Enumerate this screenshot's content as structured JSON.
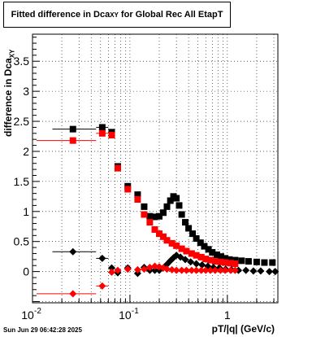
{
  "header": {
    "title_main": "Fitted difference in Dca",
    "title_sub": "XY",
    "title_tail": " for Global Rec All EtapT"
  },
  "footer": {
    "datestamp": "Sun Jun 29 06:42:28 2025"
  },
  "chart_data": {
    "type": "scatter",
    "title": "Fitted difference in Dca_XY for Global Rec All EtapT",
    "xlabel": "pT/|q| (GeV/c)",
    "ylabel": "difference in Dca_XY",
    "xscale": "log",
    "xlim": [
      0.01,
      3.3
    ],
    "ylim": [
      -0.52,
      3.95
    ],
    "grid": true,
    "x_tick_labels": [
      "10",
      "10",
      "1"
    ],
    "x_tick_exponents": [
      "-2",
      "-1",
      ""
    ],
    "y_ticks": [
      "0",
      "0.5",
      "1",
      "1.5",
      "2",
      "2.5",
      "3",
      "3.5"
    ],
    "series": [
      {
        "color": "#000000",
        "marker": "square",
        "points": [
          {
            "x": 0.026,
            "y": 2.37,
            "xerr_low": 0.016,
            "xerr_high": 0.045
          },
          {
            "x": 0.052,
            "y": 2.4,
            "xerr_low": 0.045,
            "xerr_high": 0.06
          },
          {
            "x": 0.065,
            "y": 2.32
          },
          {
            "x": 0.075,
            "y": 1.75
          },
          {
            "x": 0.095,
            "y": 1.42
          },
          {
            "x": 0.12,
            "y": 1.28
          },
          {
            "x": 0.14,
            "y": 1.08
          },
          {
            "x": 0.16,
            "y": 0.92
          },
          {
            "x": 0.18,
            "y": 0.91
          },
          {
            "x": 0.2,
            "y": 0.92
          },
          {
            "x": 0.22,
            "y": 0.98
          },
          {
            "x": 0.24,
            "y": 1.08
          },
          {
            "x": 0.26,
            "y": 1.18
          },
          {
            "x": 0.28,
            "y": 1.25
          },
          {
            "x": 0.3,
            "y": 1.22
          },
          {
            "x": 0.32,
            "y": 1.1
          },
          {
            "x": 0.34,
            "y": 0.95
          },
          {
            "x": 0.37,
            "y": 0.82
          },
          {
            "x": 0.4,
            "y": 0.72
          },
          {
            "x": 0.44,
            "y": 0.63
          },
          {
            "x": 0.48,
            "y": 0.55
          },
          {
            "x": 0.53,
            "y": 0.48
          },
          {
            "x": 0.58,
            "y": 0.42
          },
          {
            "x": 0.64,
            "y": 0.37
          },
          {
            "x": 0.7,
            "y": 0.32
          },
          {
            "x": 0.78,
            "y": 0.28
          },
          {
            "x": 0.86,
            "y": 0.25
          },
          {
            "x": 0.95,
            "y": 0.22
          },
          {
            "x": 1.05,
            "y": 0.2
          },
          {
            "x": 1.2,
            "y": 0.19
          },
          {
            "x": 1.4,
            "y": 0.18
          },
          {
            "x": 1.65,
            "y": 0.17
          },
          {
            "x": 2.0,
            "y": 0.16
          },
          {
            "x": 2.4,
            "y": 0.15
          },
          {
            "x": 2.9,
            "y": 0.15
          }
        ]
      },
      {
        "color": "#ff0000",
        "marker": "square",
        "points": [
          {
            "x": 0.026,
            "y": 2.18,
            "xerr_low": 0.011,
            "xerr_high": 0.045
          },
          {
            "x": 0.052,
            "y": 2.3,
            "xerr_low": 0.045,
            "xerr_high": 0.06
          },
          {
            "x": 0.065,
            "y": 2.27
          },
          {
            "x": 0.075,
            "y": 1.72
          },
          {
            "x": 0.095,
            "y": 1.37
          },
          {
            "x": 0.12,
            "y": 1.2
          },
          {
            "x": 0.14,
            "y": 0.95
          },
          {
            "x": 0.16,
            "y": 0.82
          },
          {
            "x": 0.18,
            "y": 0.7
          },
          {
            "x": 0.2,
            "y": 0.63
          },
          {
            "x": 0.22,
            "y": 0.58
          },
          {
            "x": 0.24,
            "y": 0.52
          },
          {
            "x": 0.27,
            "y": 0.47
          },
          {
            "x": 0.3,
            "y": 0.43
          },
          {
            "x": 0.34,
            "y": 0.38
          },
          {
            "x": 0.38,
            "y": 0.34
          },
          {
            "x": 0.43,
            "y": 0.3
          },
          {
            "x": 0.48,
            "y": 0.27
          },
          {
            "x": 0.54,
            "y": 0.24
          },
          {
            "x": 0.6,
            "y": 0.21
          },
          {
            "x": 0.67,
            "y": 0.19
          },
          {
            "x": 0.75,
            "y": 0.17
          },
          {
            "x": 0.85,
            "y": 0.16
          },
          {
            "x": 0.95,
            "y": 0.15
          },
          {
            "x": 1.08,
            "y": 0.14
          },
          {
            "x": 1.2,
            "y": 0.13
          }
        ]
      },
      {
        "color": "#000000",
        "marker": "diamond",
        "points": [
          {
            "x": 0.026,
            "y": 0.33,
            "xerr_low": 0.016,
            "xerr_high": 0.045
          },
          {
            "x": 0.052,
            "y": 0.22,
            "xerr_low": 0.045,
            "xerr_high": 0.06
          },
          {
            "x": 0.065,
            "y": 0.06
          },
          {
            "x": 0.075,
            "y": -0.02
          },
          {
            "x": 0.095,
            "y": 0.06
          },
          {
            "x": 0.12,
            "y": -0.03
          },
          {
            "x": 0.14,
            "y": 0.07
          },
          {
            "x": 0.16,
            "y": 0.02
          },
          {
            "x": 0.18,
            "y": 0.02
          },
          {
            "x": 0.2,
            "y": 0.02
          },
          {
            "x": 0.22,
            "y": 0.06
          },
          {
            "x": 0.24,
            "y": 0.12
          },
          {
            "x": 0.26,
            "y": 0.18
          },
          {
            "x": 0.28,
            "y": 0.23
          },
          {
            "x": 0.3,
            "y": 0.27
          },
          {
            "x": 0.33,
            "y": 0.24
          },
          {
            "x": 0.37,
            "y": 0.2
          },
          {
            "x": 0.42,
            "y": 0.16
          },
          {
            "x": 0.48,
            "y": 0.13
          },
          {
            "x": 0.55,
            "y": 0.11
          },
          {
            "x": 0.63,
            "y": 0.09
          },
          {
            "x": 0.72,
            "y": 0.07
          },
          {
            "x": 0.83,
            "y": 0.06
          },
          {
            "x": 0.96,
            "y": 0.04
          },
          {
            "x": 1.1,
            "y": 0.03
          },
          {
            "x": 1.3,
            "y": 0.02
          },
          {
            "x": 1.55,
            "y": 0.02
          },
          {
            "x": 1.85,
            "y": 0.01
          },
          {
            "x": 2.2,
            "y": 0.01
          },
          {
            "x": 2.7,
            "y": 0.0
          },
          {
            "x": 3.1,
            "y": 0.0
          }
        ]
      },
      {
        "color": "#ff0000",
        "marker": "diamond",
        "points": [
          {
            "x": 0.026,
            "y": -0.37,
            "xerr_low": 0.011,
            "xerr_high": 0.045
          },
          {
            "x": 0.052,
            "y": -0.24,
            "xerr_low": 0.045,
            "xerr_high": 0.06
          },
          {
            "x": 0.065,
            "y": -0.01
          },
          {
            "x": 0.075,
            "y": 0.02
          },
          {
            "x": 0.095,
            "y": 0.04
          },
          {
            "x": 0.12,
            "y": 0.03
          },
          {
            "x": 0.14,
            "y": 0.04
          },
          {
            "x": 0.16,
            "y": 0.07
          },
          {
            "x": 0.18,
            "y": 0.09
          },
          {
            "x": 0.2,
            "y": 0.08
          },
          {
            "x": 0.22,
            "y": 0.06
          },
          {
            "x": 0.24,
            "y": 0.04
          },
          {
            "x": 0.27,
            "y": 0.03
          },
          {
            "x": 0.3,
            "y": 0.02
          },
          {
            "x": 0.34,
            "y": 0.02
          },
          {
            "x": 0.38,
            "y": 0.02
          },
          {
            "x": 0.43,
            "y": 0.02
          },
          {
            "x": 0.48,
            "y": 0.02
          },
          {
            "x": 0.54,
            "y": 0.02
          },
          {
            "x": 0.6,
            "y": 0.02
          },
          {
            "x": 0.67,
            "y": 0.02
          },
          {
            "x": 0.75,
            "y": 0.02
          },
          {
            "x": 0.85,
            "y": 0.02
          },
          {
            "x": 0.95,
            "y": 0.02
          },
          {
            "x": 1.08,
            "y": 0.02
          },
          {
            "x": 1.2,
            "y": 0.02
          }
        ]
      }
    ]
  }
}
